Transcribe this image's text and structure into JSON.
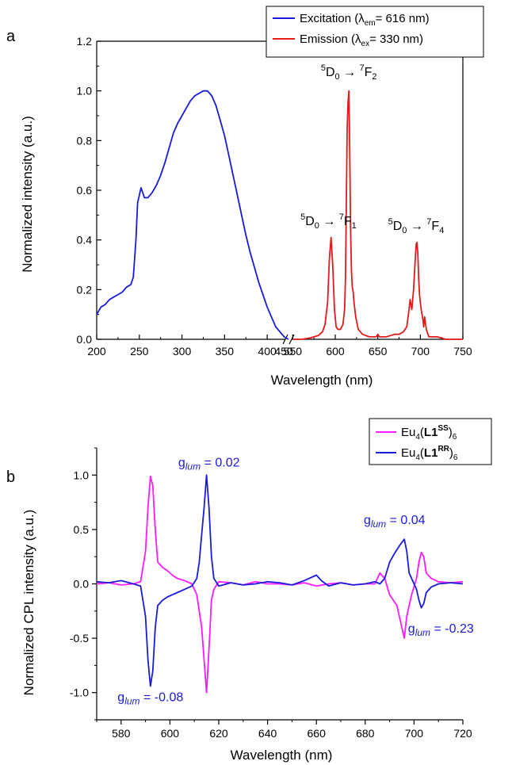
{
  "panels": {
    "a": {
      "label": "a"
    },
    "b": {
      "label": "b"
    }
  },
  "chart_data": [
    {
      "type": "line",
      "panel": "a",
      "xlabel": "Wavelength (nm)",
      "ylabel": "Normalized intensity (a.u.)",
      "axis_break": [
        425,
        545
      ],
      "xticks": [
        200,
        250,
        300,
        350,
        400,
        450,
        550,
        600,
        650,
        700,
        750
      ],
      "yticks": [
        0.0,
        0.2,
        0.4,
        0.6,
        0.8,
        1.0,
        1.2
      ],
      "ytick_labels": [
        "0.0",
        "0.2",
        "0.4",
        "0.6",
        "0.8",
        "1.0",
        "1.2"
      ],
      "ylim": [
        0,
        1.2
      ],
      "legend_position": "top-right",
      "series": [
        {
          "name": "Excitation (λem = 616 nm)",
          "legend_main": "Excitation (λ",
          "legend_sub": "em",
          "legend_tail": "= 616 nm)",
          "color": "#1a1adb",
          "points": [
            [
              200,
              0.1
            ],
            [
              205,
              0.13
            ],
            [
              210,
              0.14
            ],
            [
              215,
              0.16
            ],
            [
              220,
              0.17
            ],
            [
              225,
              0.18
            ],
            [
              230,
              0.19
            ],
            [
              235,
              0.21
            ],
            [
              240,
              0.22
            ],
            [
              243,
              0.25
            ],
            [
              246,
              0.4
            ],
            [
              248,
              0.55
            ],
            [
              250,
              0.58
            ],
            [
              252,
              0.61
            ],
            [
              254,
              0.59
            ],
            [
              256,
              0.57
            ],
            [
              260,
              0.57
            ],
            [
              265,
              0.59
            ],
            [
              270,
              0.62
            ],
            [
              275,
              0.66
            ],
            [
              280,
              0.71
            ],
            [
              285,
              0.77
            ],
            [
              290,
              0.83
            ],
            [
              295,
              0.87
            ],
            [
              300,
              0.9
            ],
            [
              305,
              0.93
            ],
            [
              310,
              0.96
            ],
            [
              315,
              0.98
            ],
            [
              320,
              0.99
            ],
            [
              325,
              1.0
            ],
            [
              330,
              1.0
            ],
            [
              335,
              0.98
            ],
            [
              340,
              0.94
            ],
            [
              345,
              0.88
            ],
            [
              350,
              0.82
            ],
            [
              355,
              0.74
            ],
            [
              360,
              0.66
            ],
            [
              365,
              0.58
            ],
            [
              370,
              0.5
            ],
            [
              375,
              0.42
            ],
            [
              380,
              0.35
            ],
            [
              385,
              0.29
            ],
            [
              390,
              0.23
            ],
            [
              395,
              0.18
            ],
            [
              400,
              0.13
            ],
            [
              405,
              0.09
            ],
            [
              410,
              0.05
            ],
            [
              415,
              0.03
            ],
            [
              420,
              0.01
            ],
            [
              425,
              0.0
            ]
          ]
        },
        {
          "name": "Emission (λex = 330 nm)",
          "legend_main": "Emission (λ",
          "legend_sub": "ex",
          "legend_tail": "= 330 nm)",
          "color": "#e41a1a",
          "points": [
            [
              550,
              0.0
            ],
            [
              560,
              0.0
            ],
            [
              570,
              0.005
            ],
            [
              575,
              0.01
            ],
            [
              580,
              0.015
            ],
            [
              585,
              0.03
            ],
            [
              588,
              0.06
            ],
            [
              591,
              0.15
            ],
            [
              593,
              0.32
            ],
            [
              595,
              0.41
            ],
            [
              597,
              0.3
            ],
            [
              599,
              0.12
            ],
            [
              601,
              0.05
            ],
            [
              603,
              0.04
            ],
            [
              606,
              0.04
            ],
            [
              609,
              0.06
            ],
            [
              611,
              0.12
            ],
            [
              612,
              0.25
            ],
            [
              613,
              0.55
            ],
            [
              614,
              0.85
            ],
            [
              615,
              0.95
            ],
            [
              616,
              1.0
            ],
            [
              617,
              0.75
            ],
            [
              618,
              0.45
            ],
            [
              619,
              0.28
            ],
            [
              620,
              0.21
            ],
            [
              621,
              0.19
            ],
            [
              622,
              0.15
            ],
            [
              624,
              0.09
            ],
            [
              627,
              0.04
            ],
            [
              632,
              0.02
            ],
            [
              640,
              0.01
            ],
            [
              648,
              0.01
            ],
            [
              650,
              0.02
            ],
            [
              652,
              0.01
            ],
            [
              660,
              0.01
            ],
            [
              670,
              0.02
            ],
            [
              675,
              0.02
            ],
            [
              680,
              0.03
            ],
            [
              684,
              0.05
            ],
            [
              686,
              0.1
            ],
            [
              688,
              0.16
            ],
            [
              689,
              0.14
            ],
            [
              690,
              0.12
            ],
            [
              692,
              0.2
            ],
            [
              694,
              0.32
            ],
            [
              695,
              0.38
            ],
            [
              696,
              0.39
            ],
            [
              697,
              0.35
            ],
            [
              698,
              0.25
            ],
            [
              699,
              0.18
            ],
            [
              700,
              0.15
            ],
            [
              701,
              0.12
            ],
            [
              702,
              0.1
            ],
            [
              703,
              0.08
            ],
            [
              704,
              0.05
            ],
            [
              705,
              0.09
            ],
            [
              707,
              0.04
            ],
            [
              710,
              0.01
            ],
            [
              720,
              0.01
            ],
            [
              730,
              0.0
            ],
            [
              740,
              0.0
            ],
            [
              750,
              0.0
            ]
          ]
        }
      ],
      "annotations": [
        {
          "text": "5D0 → 7F2",
          "sup1": "5",
          "main1": "D",
          "sub1": "0",
          "arrow": " → ",
          "sup2": "7",
          "main2": "F",
          "sub2": "2",
          "x": 616,
          "y": 1.06
        },
        {
          "text": "5D0 → 7F1",
          "sup1": "5",
          "main1": "D",
          "sub1": "0",
          "arrow": " → ",
          "sup2": "7",
          "main2": "F",
          "sub2": "1",
          "x": 592,
          "y": 0.46
        },
        {
          "text": "5D0 → 7F4",
          "sup1": "5",
          "main1": "D",
          "sub1": "0",
          "arrow": " → ",
          "sup2": "7",
          "main2": "F",
          "sub2": "4",
          "x": 695,
          "y": 0.44
        }
      ]
    },
    {
      "type": "line",
      "panel": "b",
      "xlabel": "Wavelength (nm)",
      "ylabel": "Normalized CPL intensity (a.u.)",
      "xlim": [
        570,
        720
      ],
      "ylim": [
        -1.25,
        1.25
      ],
      "xticks": [
        580,
        600,
        620,
        640,
        660,
        680,
        700,
        720
      ],
      "yticks": [
        -1.0,
        -0.5,
        0.0,
        0.5,
        1.0
      ],
      "ytick_labels": [
        "-1.0",
        "-0.5",
        "0.0",
        "0.5",
        "1.0"
      ],
      "legend_position": "top-right",
      "series": [
        {
          "name": "Eu4(L1SS)6",
          "legend_parts": [
            "Eu",
            "4",
            "(",
            "L1",
            "SS",
            ")",
            "6"
          ],
          "color": "#ff1aff",
          "points": [
            [
              570,
              0.0
            ],
            [
              575,
              0.01
            ],
            [
              580,
              -0.01
            ],
            [
              585,
              0.0
            ],
            [
              588,
              0.02
            ],
            [
              590,
              0.3
            ],
            [
              591,
              0.7
            ],
            [
              592,
              0.99
            ],
            [
              593,
              0.9
            ],
            [
              594,
              0.5
            ],
            [
              595,
              0.2
            ],
            [
              597,
              0.15
            ],
            [
              599,
              0.12
            ],
            [
              601,
              0.08
            ],
            [
              603,
              0.05
            ],
            [
              606,
              0.03
            ],
            [
              609,
              0.0
            ],
            [
              611,
              -0.1
            ],
            [
              612,
              -0.25
            ],
            [
              613,
              -0.4
            ],
            [
              614,
              -0.7
            ],
            [
              615,
              -1.0
            ],
            [
              616,
              -0.6
            ],
            [
              617,
              -0.15
            ],
            [
              618,
              -0.05
            ],
            [
              620,
              0.02
            ],
            [
              625,
              0.01
            ],
            [
              630,
              -0.01
            ],
            [
              635,
              0.02
            ],
            [
              640,
              0.0
            ],
            [
              645,
              0.0
            ],
            [
              650,
              -0.01
            ],
            [
              655,
              0.01
            ],
            [
              660,
              -0.02
            ],
            [
              665,
              0.0
            ],
            [
              670,
              0.01
            ],
            [
              675,
              -0.01
            ],
            [
              680,
              0.0
            ],
            [
              684,
              0.0
            ],
            [
              686,
              0.1
            ],
            [
              688,
              0.05
            ],
            [
              690,
              -0.1
            ],
            [
              693,
              -0.2
            ],
            [
              695,
              -0.4
            ],
            [
              696,
              -0.5
            ],
            [
              697,
              -0.3
            ],
            [
              699,
              -0.1
            ],
            [
              701,
              0.05
            ],
            [
              702,
              0.2
            ],
            [
              703,
              0.29
            ],
            [
              704,
              0.25
            ],
            [
              705,
              0.1
            ],
            [
              707,
              0.05
            ],
            [
              710,
              0.02
            ],
            [
              715,
              0.01
            ],
            [
              720,
              0.02
            ]
          ]
        },
        {
          "name": "Eu4(L1RR)6",
          "legend_parts": [
            "Eu",
            "4",
            "(",
            "L1",
            "RR",
            ")",
            "6"
          ],
          "color": "#1a1adb",
          "points": [
            [
              570,
              0.02
            ],
            [
              575,
              0.01
            ],
            [
              580,
              0.03
            ],
            [
              585,
              0.0
            ],
            [
              588,
              -0.02
            ],
            [
              590,
              -0.3
            ],
            [
              591,
              -0.7
            ],
            [
              592,
              -0.94
            ],
            [
              593,
              -0.8
            ],
            [
              594,
              -0.4
            ],
            [
              595,
              -0.2
            ],
            [
              597,
              -0.15
            ],
            [
              599,
              -0.12
            ],
            [
              601,
              -0.1
            ],
            [
              603,
              -0.08
            ],
            [
              606,
              -0.05
            ],
            [
              609,
              -0.02
            ],
            [
              611,
              0.05
            ],
            [
              612,
              0.2
            ],
            [
              613,
              0.45
            ],
            [
              614,
              0.7
            ],
            [
              615,
              1.0
            ],
            [
              616,
              0.7
            ],
            [
              617,
              0.25
            ],
            [
              618,
              0.05
            ],
            [
              620,
              -0.02
            ],
            [
              625,
              0.01
            ],
            [
              630,
              -0.01
            ],
            [
              635,
              0.0
            ],
            [
              640,
              0.02
            ],
            [
              645,
              0.01
            ],
            [
              650,
              -0.01
            ],
            [
              655,
              0.03
            ],
            [
              660,
              0.08
            ],
            [
              662,
              0.03
            ],
            [
              665,
              -0.02
            ],
            [
              670,
              0.01
            ],
            [
              675,
              -0.01
            ],
            [
              680,
              0.0
            ],
            [
              684,
              0.02
            ],
            [
              686,
              0.0
            ],
            [
              688,
              0.05
            ],
            [
              690,
              0.2
            ],
            [
              692,
              0.28
            ],
            [
              694,
              0.35
            ],
            [
              696,
              0.41
            ],
            [
              697,
              0.3
            ],
            [
              698,
              0.1
            ],
            [
              700,
              0.0
            ],
            [
              701,
              -0.05
            ],
            [
              702,
              -0.15
            ],
            [
              703,
              -0.22
            ],
            [
              704,
              -0.18
            ],
            [
              705,
              -0.08
            ],
            [
              707,
              -0.03
            ],
            [
              710,
              0.0
            ],
            [
              715,
              0.01
            ],
            [
              720,
              0.0
            ]
          ]
        }
      ],
      "annotations": [
        {
          "text": "glum = 0.02",
          "main": "g",
          "sub": "lum",
          "tail": " = 0.02",
          "x": 616,
          "y": 1.08
        },
        {
          "text": "glum = 0.04",
          "main": "g",
          "sub": "lum",
          "tail": " = 0.04",
          "x": 692,
          "y": 0.55
        },
        {
          "text": "glum = -0.23",
          "main": "g",
          "sub": "lum",
          "tail": " = -0.23",
          "x": 711,
          "y": -0.45
        },
        {
          "text": "glum = -0.08",
          "main": "g",
          "sub": "lum",
          "tail": " = -0.08",
          "x": 592,
          "y": -1.08
        }
      ]
    }
  ]
}
